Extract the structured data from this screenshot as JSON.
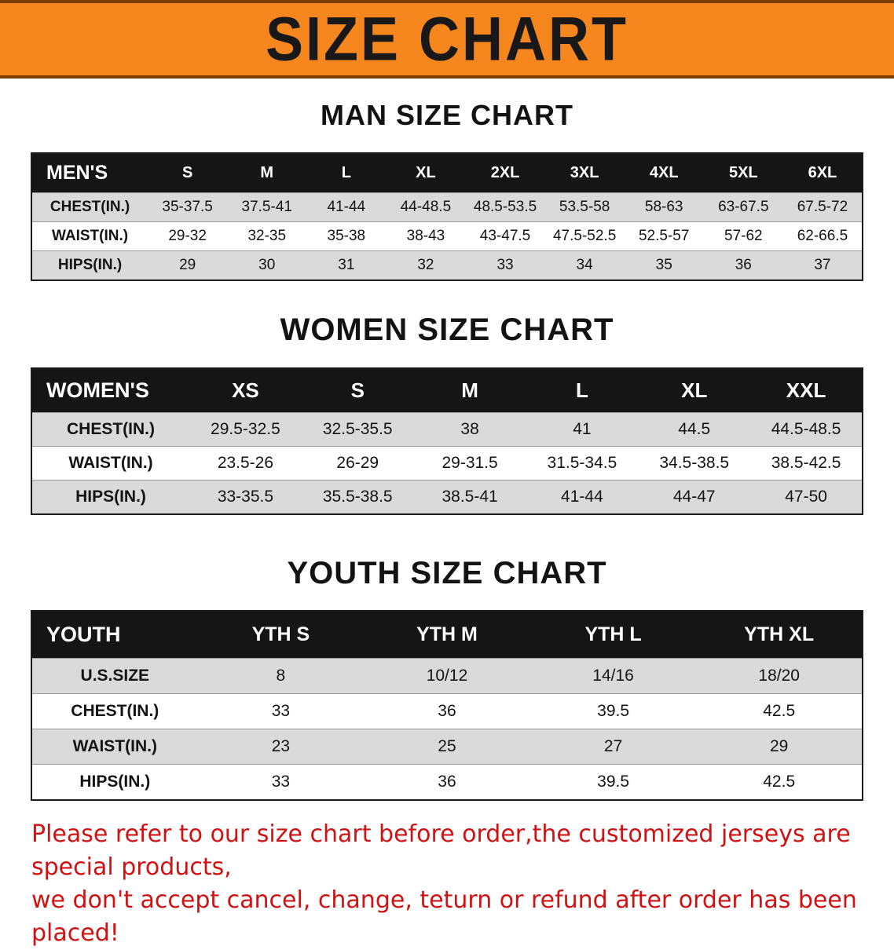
{
  "banner": {
    "title": "SIZE CHART",
    "bg_color": "#f6871f",
    "edge_color": "#7c3c04"
  },
  "sections": [
    {
      "heading": "MAN SIZE CHART",
      "table": {
        "header": [
          "MEN'S",
          "S",
          "M",
          "L",
          "XL",
          "2XL",
          "3XL",
          "4XL",
          "5XL",
          "6XL"
        ],
        "rows": [
          [
            "CHEST(IN.)",
            "35-37.5",
            "37.5-41",
            "41-44",
            "44-48.5",
            "48.5-53.5",
            "53.5-58",
            "58-63",
            "63-67.5",
            "67.5-72"
          ],
          [
            "WAIST(IN.)",
            "29-32",
            "32-35",
            "35-38",
            "38-43",
            "43-47.5",
            "47.5-52.5",
            "52.5-57",
            "57-62",
            "62-66.5"
          ],
          [
            "HIPS(IN.)",
            "29",
            "30",
            "31",
            "32",
            "33",
            "34",
            "35",
            "36",
            "37"
          ]
        ]
      }
    },
    {
      "heading": "WOMEN SIZE CHART",
      "table": {
        "header": [
          "WOMEN'S",
          "XS",
          "S",
          "M",
          "L",
          "XL",
          "XXL"
        ],
        "rows": [
          [
            "CHEST(IN.)",
            "29.5-32.5",
            "32.5-35.5",
            "38",
            "41",
            "44.5",
            "44.5-48.5"
          ],
          [
            "WAIST(IN.)",
            "23.5-26",
            "26-29",
            "29-31.5",
            "31.5-34.5",
            "34.5-38.5",
            "38.5-42.5"
          ],
          [
            "HIPS(IN.)",
            "33-35.5",
            "35.5-38.5",
            "38.5-41",
            "41-44",
            "44-47",
            "47-50"
          ]
        ]
      }
    },
    {
      "heading": "YOUTH SIZE CHART",
      "table": {
        "header": [
          "YOUTH",
          "YTH S",
          "YTH M",
          "YTH L",
          "YTH XL"
        ],
        "rows": [
          [
            "U.S.SIZE",
            "8",
            "10/12",
            "14/16",
            "18/20"
          ],
          [
            "CHEST(IN.)",
            "33",
            "36",
            "39.5",
            "42.5"
          ],
          [
            "WAIST(IN.)",
            "23",
            "25",
            "27",
            "29"
          ],
          [
            "HIPS(IN.)",
            "33",
            "36",
            "39.5",
            "42.5"
          ]
        ]
      }
    }
  ],
  "disclaimer": {
    "line1": "Please refer to our size chart before order,the customized jerseys are special products,",
    "line2": "we don't accept cancel, change, teturn or refund after order has been placed!",
    "color": "#d11212"
  }
}
